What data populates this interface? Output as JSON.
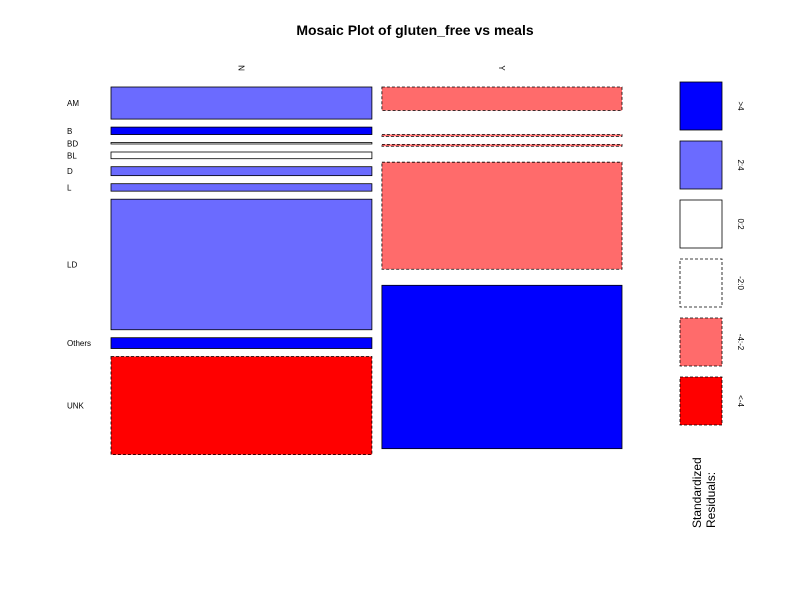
{
  "chart_data": {
    "type": "mosaic",
    "title": "Mosaic Plot of gluten_free vs meals",
    "columns": [
      "N",
      "Y"
    ],
    "rows": [
      "AM",
      "B",
      "BD",
      "BL",
      "D",
      "L",
      "LD",
      "Others",
      "UNK"
    ],
    "column_widths": [
      0.5,
      0.46
    ],
    "cells": [
      {
        "row": "AM",
        "col": "N",
        "height": 0.086,
        "residual_bin": "2:4"
      },
      {
        "row": "AM",
        "col": "Y",
        "height": 0.063,
        "residual_bin": "-4:-2"
      },
      {
        "row": "B",
        "col": "N",
        "height": 0.02,
        "residual_bin": ">4"
      },
      {
        "row": "B",
        "col": "Y",
        "height": 0.0,
        "residual_bin": "-2:0"
      },
      {
        "row": "BD",
        "col": "N",
        "height": 0.004,
        "residual_bin": "0:2"
      },
      {
        "row": "BD",
        "col": "Y",
        "height": 0.0,
        "residual_bin": "-2:0"
      },
      {
        "row": "BL",
        "col": "N",
        "height": 0.018,
        "residual_bin": "0:2"
      },
      {
        "row": "BL",
        "col": "Y",
        "height": 0.005,
        "residual_bin": "-4:-2"
      },
      {
        "row": "D",
        "col": "N",
        "height": 0.024,
        "residual_bin": "2:4"
      },
      {
        "row": "D",
        "col": "Y",
        "height": 0.005,
        "residual_bin": "-4:-2"
      },
      {
        "row": "L",
        "col": "N",
        "height": 0.02,
        "residual_bin": "2:4"
      },
      {
        "row": "L",
        "col": "Y",
        "height": 0.0,
        "residual_bin": "-2:0"
      },
      {
        "row": "LD",
        "col": "N",
        "height": 0.35,
        "residual_bin": "2:4"
      },
      {
        "row": "LD",
        "col": "Y",
        "height": 0.287,
        "residual_bin": "-4:-2"
      },
      {
        "row": "Others",
        "col": "N",
        "height": 0.029,
        "residual_bin": ">4"
      },
      {
        "row": "Others",
        "col": "Y",
        "height": 0.0,
        "residual_bin": "-2:0"
      },
      {
        "row": "UNK",
        "col": "N",
        "height": 0.263,
        "residual_bin": "<-4"
      },
      {
        "row": "UNK",
        "col": "Y",
        "height": 0.438,
        "residual_bin": ">4"
      }
    ],
    "legend": {
      "title_lines": [
        "Standardized",
        "Residuals:"
      ],
      "bins": [
        {
          "label": ">4",
          "fill": "#0000FF",
          "dashed": false
        },
        {
          "label": "2:4",
          "fill": "#6B6BFF",
          "dashed": false
        },
        {
          "label": "0:2",
          "fill": "#FFFFFF",
          "dashed": false
        },
        {
          "label": "-2:0",
          "fill": "#FFFFFF",
          "dashed": true
        },
        {
          "label": "-4:-2",
          "fill": "#FF6B6B",
          "dashed": true
        },
        {
          "label": "<-4",
          "fill": "#FF0000",
          "dashed": true
        }
      ]
    }
  }
}
